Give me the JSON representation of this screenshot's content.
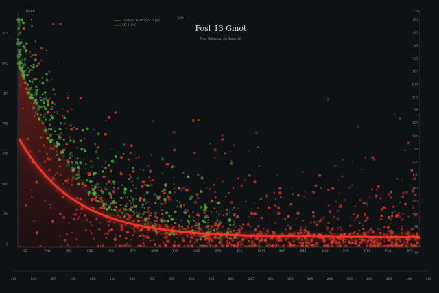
{
  "chart_data": {
    "type": "scatter",
    "title": "Fost 13 Gmot",
    "subtitle": "Fros Tofuchiad En Sobsd36",
    "header_labels": [
      "BD8N",
      "ISD",
      "CPS"
    ],
    "legend": {
      "position": "top",
      "entries": [
        {
          "label": "Tasmsa: ISDen Sor 5098",
          "color": "#4caf3c"
        },
        {
          "label": "SD 9HPK",
          "color": "#d63a2c"
        }
      ]
    },
    "x_ticks": [
      "4KS",
      "1KS",
      "4KS",
      "1KS",
      "2KS",
      "5KS",
      "4KS",
      "2KS",
      "6KS",
      "4KS",
      "3KS",
      "2KS",
      "3KS",
      "2KS",
      "3KS",
      "1KS",
      "2KS",
      "4KS",
      "2KS",
      "2KS",
      "4KS",
      "1KS"
    ],
    "y_ticks_left": [
      "9F5",
      "8V5",
      "D5",
      "P0S",
      "S8S",
      "SN5",
      "B9",
      "0"
    ],
    "y_ticks_right": [
      "0P9",
      "4P5",
      "M5",
      "S85",
      "16S",
      "B95",
      "SH5",
      "S5",
      "SB5",
      "S90",
      "S5",
      "S35",
      "P50",
      "1N5",
      "0P5",
      "S55",
      "S0",
      "P5",
      "P5"
    ],
    "inner_x_ticks": [
      "50",
      "PN5",
      "SPS",
      "P20",
      "ISD",
      "SP0",
      "NOS",
      "SYS",
      "40S",
      "OP0",
      "SEC",
      "PKSS",
      "SVT",
      "BSS",
      "SOO",
      "SYS",
      "DTS",
      "PKS",
      "SV5"
    ],
    "xlim": [
      0,
      100
    ],
    "ylim": [
      0,
      100
    ],
    "series": [
      {
        "color": "#4caf3c",
        "values": []
      },
      {
        "color": "#d63a2c",
        "values": []
      }
    ],
    "trend_line": {
      "color": "#ff3a2a"
    },
    "grid": false
  }
}
